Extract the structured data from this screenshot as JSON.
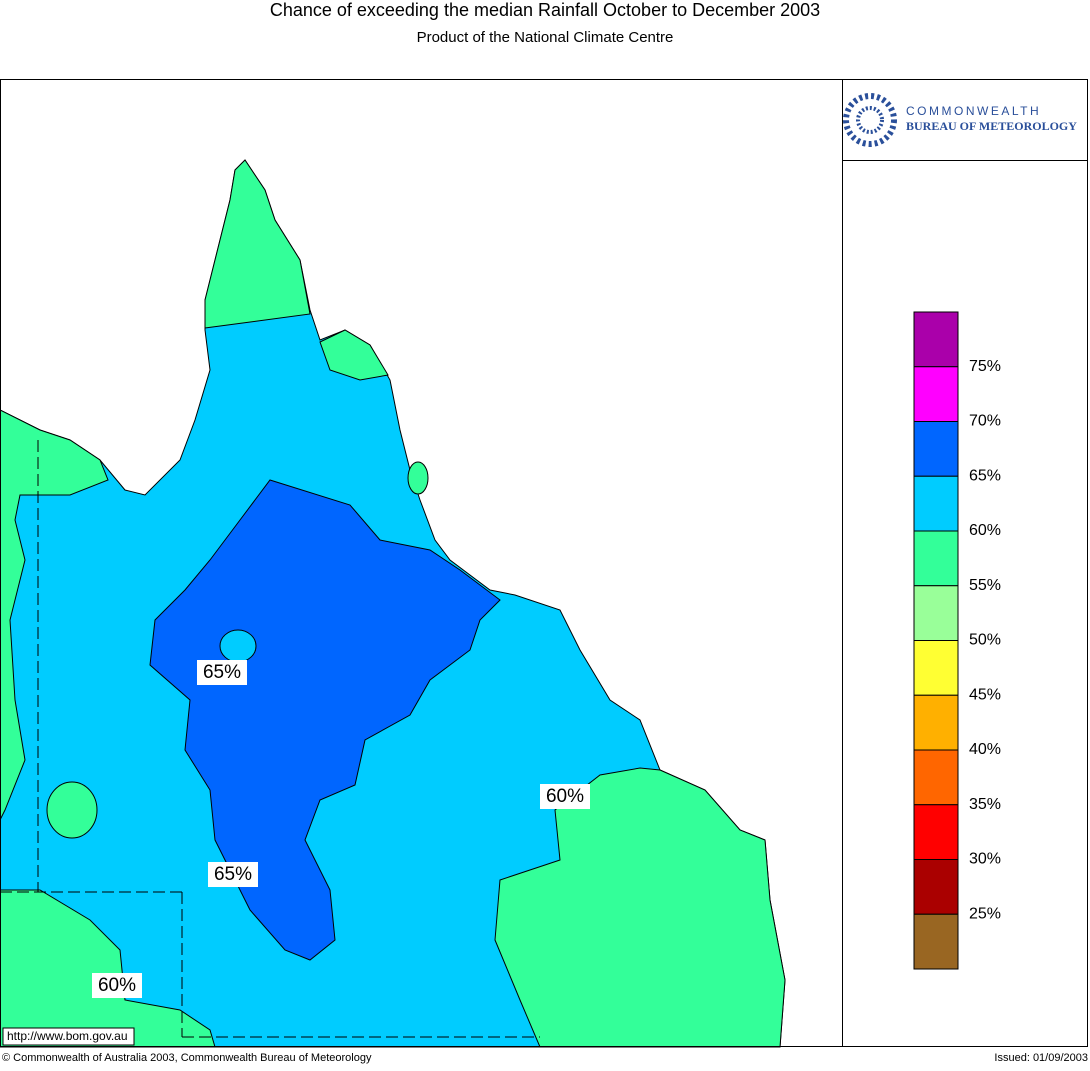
{
  "header": {
    "title": "Chance of exceeding the median Rainfall October to December 2003",
    "subtitle": "Product of the National Climate Centre"
  },
  "logo": {
    "line1": "COMMONWEALTH",
    "line2": "BUREAU OF METEOROLOGY"
  },
  "legend": {
    "colors": [
      "#aa00aa",
      "#ff00ff",
      "#0066ff",
      "#00ccff",
      "#33ff99",
      "#99ff99",
      "#ffff33",
      "#ffb000",
      "#ff6600",
      "#ff0000",
      "#aa0000",
      "#996622"
    ],
    "labels": [
      "75%",
      "70%",
      "65%",
      "60%",
      "55%",
      "50%",
      "45%",
      "40%",
      "35%",
      "30%",
      "25%"
    ]
  },
  "map": {
    "contour_labels": [
      "65%",
      "65%",
      "60%",
      "60%"
    ],
    "url": "http://www.bom.gov.au"
  },
  "footer": {
    "copyright": "© Commonwealth of Australia 2003, Commonwealth Bureau of Meteorology",
    "issued": "Issued: 01/09/2003"
  }
}
